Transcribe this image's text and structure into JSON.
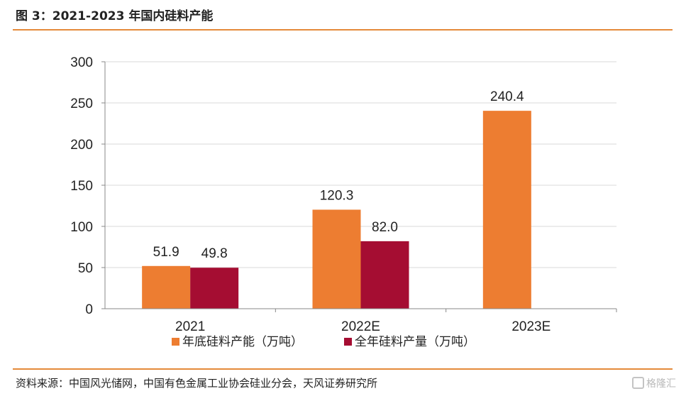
{
  "figure": {
    "title": "图 3：2021-2023 年国内硅料产能",
    "source": "资料来源：中国风光储网，中国有色金属工业协会硅业分会，天风证券研究所",
    "watermark": "格隆汇"
  },
  "chart_data": {
    "type": "bar",
    "categories": [
      "2021",
      "2022E",
      "2023E"
    ],
    "series": [
      {
        "name": "年底硅料产能（万吨）",
        "values": [
          51.9,
          120.3,
          240.4
        ],
        "color": "#ED7D31"
      },
      {
        "name": "全年硅料产量（万吨）",
        "values": [
          49.8,
          82.0,
          null
        ],
        "color": "#A50D32"
      }
    ],
    "data_labels": [
      [
        "51.9",
        "120.3",
        "240.4"
      ],
      [
        "49.8",
        "82.0",
        ""
      ]
    ],
    "ylim": [
      0,
      300
    ],
    "yticks": [
      0,
      50,
      100,
      150,
      200,
      250,
      300
    ],
    "grid": true,
    "legend_position": "bottom"
  }
}
